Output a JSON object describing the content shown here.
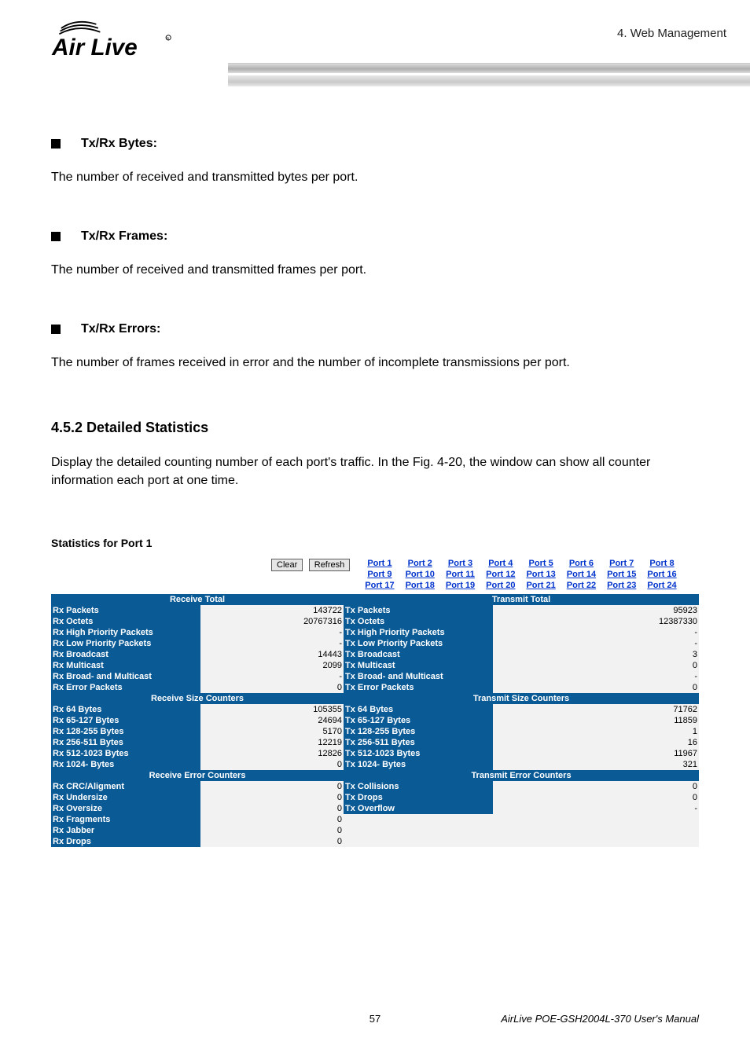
{
  "header": {
    "section_label": "4.  Web Management"
  },
  "body": {
    "bullet1": {
      "title": "Tx/Rx Bytes:",
      "text": "The number of received and transmitted bytes per port."
    },
    "bullet2": {
      "title": "Tx/Rx Frames:",
      "text": "The number of received and transmitted frames per port."
    },
    "bullet3": {
      "title": "Tx/Rx Errors:",
      "text": "The number of frames received in error and the number of incomplete transmissions per port."
    },
    "section": {
      "heading": "4.5.2 Detailed Statistics",
      "text": "Display the detailed counting number of each port's traffic. In the Fig. 4-20, the window can show all counter information each port at one time."
    }
  },
  "stats": {
    "title": "Statistics for Port 1",
    "buttons": {
      "clear": "Clear",
      "refresh": "Refresh"
    },
    "ports": {
      "row1": [
        "Port 1",
        "Port 2",
        "Port 3",
        "Port 4",
        "Port 5",
        "Port 6",
        "Port 7",
        "Port 8"
      ],
      "row2": [
        "Port 9",
        "Port 10",
        "Port 11",
        "Port 12",
        "Port 13",
        "Port 14",
        "Port 15",
        "Port 16"
      ],
      "row3": [
        "Port 17",
        "Port 18",
        "Port 19",
        "Port 20",
        "Port 21",
        "Port 22",
        "Port 23",
        "Port 24"
      ]
    },
    "headers": {
      "rx_total": "Receive Total",
      "tx_total": "Transmit Total",
      "rx_size": "Receive Size Counters",
      "tx_size": "Transmit Size Counters",
      "rx_err": "Receive Error Counters",
      "tx_err": "Transmit Error Counters"
    },
    "total": [
      {
        "rl": "Rx Packets",
        "rv": "143722",
        "tl": "Tx Packets",
        "tv": "95923"
      },
      {
        "rl": "Rx Octets",
        "rv": "20767316",
        "tl": "Tx Octets",
        "tv": "12387330"
      },
      {
        "rl": "Rx High Priority Packets",
        "rv": "-",
        "tl": "Tx High Priority Packets",
        "tv": "-"
      },
      {
        "rl": "Rx Low Priority Packets",
        "rv": "-",
        "tl": "Tx Low Priority Packets",
        "tv": "-"
      },
      {
        "rl": "Rx Broadcast",
        "rv": "14443",
        "tl": "Tx Broadcast",
        "tv": "3"
      },
      {
        "rl": "Rx Multicast",
        "rv": "2099",
        "tl": "Tx Multicast",
        "tv": "0"
      },
      {
        "rl": "Rx Broad- and Multicast",
        "rv": "-",
        "tl": "Tx Broad- and Multicast",
        "tv": "-"
      },
      {
        "rl": "Rx Error Packets",
        "rv": "0",
        "tl": "Tx Error Packets",
        "tv": "0"
      }
    ],
    "size": [
      {
        "rl": "Rx 64 Bytes",
        "rv": "105355",
        "tl": "Tx 64 Bytes",
        "tv": "71762"
      },
      {
        "rl": "Rx 65-127 Bytes",
        "rv": "24694",
        "tl": "Tx 65-127 Bytes",
        "tv": "11859"
      },
      {
        "rl": "Rx 128-255 Bytes",
        "rv": "5170",
        "tl": "Tx 128-255 Bytes",
        "tv": "1"
      },
      {
        "rl": "Rx 256-511 Bytes",
        "rv": "12219",
        "tl": "Tx 256-511 Bytes",
        "tv": "16"
      },
      {
        "rl": "Rx 512-1023 Bytes",
        "rv": "12826",
        "tl": "Tx 512-1023 Bytes",
        "tv": "11967"
      },
      {
        "rl": "Rx 1024- Bytes",
        "rv": "0",
        "tl": "Tx 1024- Bytes",
        "tv": "321"
      }
    ],
    "err": [
      {
        "rl": "Rx CRC/Aligment",
        "rv": "0",
        "tl": "Tx Collisions",
        "tv": "0"
      },
      {
        "rl": "Rx Undersize",
        "rv": "0",
        "tl": "Tx Drops",
        "tv": "0"
      },
      {
        "rl": "Rx Oversize",
        "rv": "0",
        "tl": "Tx Overflow",
        "tv": "-"
      },
      {
        "rl": "Rx Fragments",
        "rv": "0",
        "tl": "",
        "tv": ""
      },
      {
        "rl": "Rx Jabber",
        "rv": "0",
        "tl": "",
        "tv": ""
      },
      {
        "rl": "Rx Drops",
        "rv": "0",
        "tl": "",
        "tv": ""
      }
    ]
  },
  "footer": {
    "page": "57",
    "manual": "AirLive POE-GSH2004L-370 User's Manual"
  },
  "colors": {
    "header_blue": "#0a5a96",
    "link_blue": "#0033cc",
    "cell_bg": "#f2f2f2"
  }
}
